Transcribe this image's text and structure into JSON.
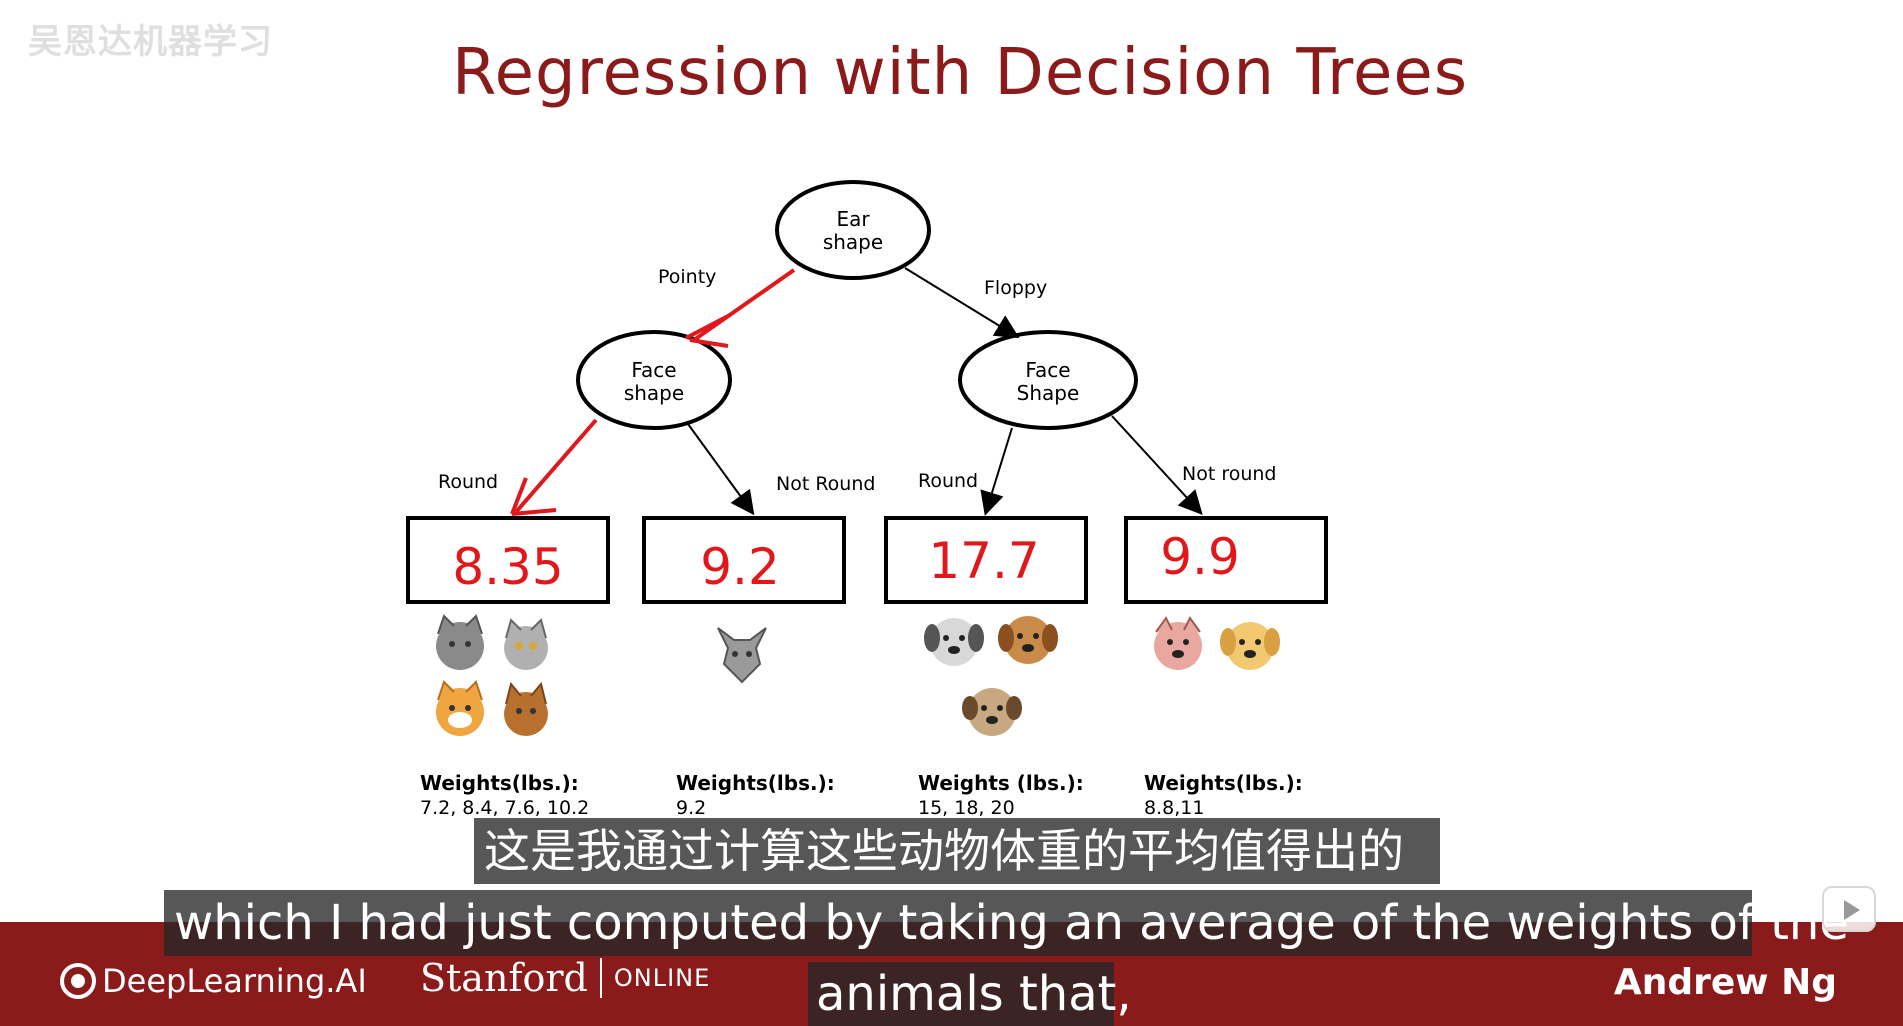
{
  "watermark": "吴恩达机器学习",
  "slide": {
    "title": "Regression with Decision Trees"
  },
  "tree": {
    "root": {
      "line1": "Ear",
      "line2": "shape"
    },
    "left": {
      "line1": "Face",
      "line2": "shape"
    },
    "right": {
      "line1": "Face",
      "line2": "Shape"
    },
    "edges": {
      "pointy": "Pointy",
      "floppy": "Floppy",
      "left_round": "Round",
      "left_not_round": "Not Round",
      "right_round": "Round",
      "right_not_round": "Not round"
    },
    "leaves": [
      {
        "value": "8.35",
        "weights_label": "Weights(lbs.):",
        "weights": "7.2, 8.4, 7.6, 10.2"
      },
      {
        "value": "9.2",
        "weights_label": "Weights(lbs.):",
        "weights": "9.2"
      },
      {
        "value": "17.7",
        "weights_label": "Weights (lbs.):",
        "weights": "15,  18, 20"
      },
      {
        "value": "9.9",
        "weights_label": "Weights(lbs.):",
        "weights": "8.8,11"
      }
    ],
    "colors": {
      "highlight": "#e0181b",
      "node": "#000000"
    }
  },
  "subtitles": {
    "chinese": "这是我通过计算这些动物体重的平均值得出的",
    "english_line1": "which I had just computed by taking an average of the weights of the",
    "english_line2": "animals that,"
  },
  "footer": {
    "deeplearning": "DeepLearning.AI",
    "stanford": "Stanford",
    "online": "ONLINE",
    "author": "Andrew Ng"
  },
  "colors": {
    "brand_bar": "#8b1a1a",
    "title": "#8b1a1a"
  }
}
